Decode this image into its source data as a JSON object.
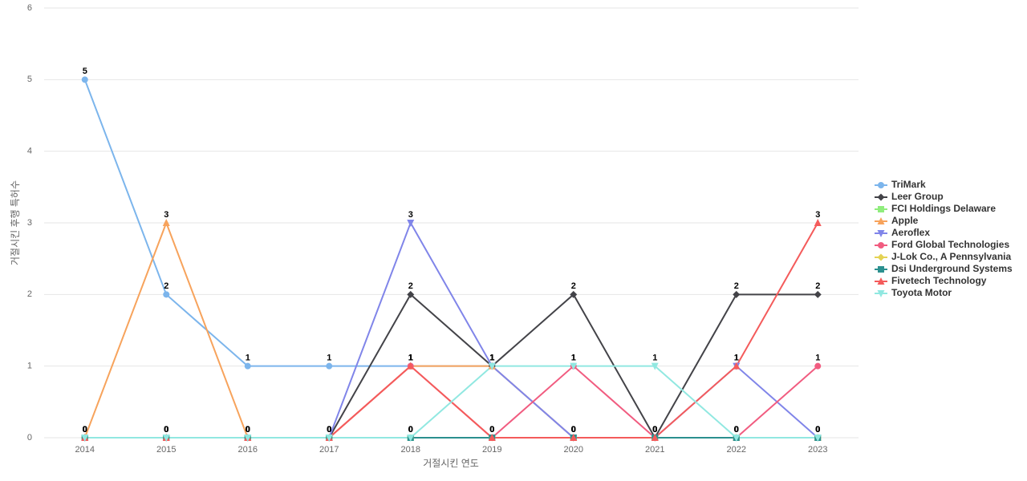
{
  "chart_data": {
    "type": "line",
    "x_label": "거절시킨 연도",
    "y_label": "거절시킨 후행 특허수",
    "categories": [
      "2014",
      "2015",
      "2016",
      "2017",
      "2018",
      "2019",
      "2020",
      "2021",
      "2022",
      "2023"
    ],
    "ylim": [
      0,
      6
    ],
    "yticks": [
      0,
      1,
      2,
      3,
      4,
      5,
      6
    ],
    "grid": true,
    "legend": "right",
    "data_labels": true,
    "series": [
      {
        "name": "TriMark",
        "color": "#7cb5ec",
        "marker": "circle",
        "values": [
          5,
          2,
          1,
          1,
          1,
          1,
          0,
          0,
          0,
          0
        ]
      },
      {
        "name": "Leer Group",
        "color": "#434348",
        "marker": "diamond",
        "values": [
          0,
          0,
          0,
          0,
          2,
          1,
          2,
          0,
          2,
          2
        ]
      },
      {
        "name": "FCI Holdings Delaware",
        "color": "#90ed7d",
        "marker": "square",
        "values": [
          0,
          0,
          0,
          0,
          0,
          0,
          0,
          0,
          0,
          0
        ]
      },
      {
        "name": "Apple",
        "color": "#f7a35c",
        "marker": "triangle",
        "values": [
          0,
          3,
          0,
          0,
          1,
          1,
          0,
          0,
          0,
          0
        ]
      },
      {
        "name": "Aeroflex",
        "color": "#8085e9",
        "marker": "triangle-down",
        "values": [
          0,
          0,
          0,
          0,
          3,
          1,
          0,
          0,
          1,
          0
        ]
      },
      {
        "name": "Ford Global Technologies",
        "color": "#f15c80",
        "marker": "circle",
        "values": [
          0,
          0,
          0,
          0,
          1,
          0,
          1,
          0,
          0,
          1
        ]
      },
      {
        "name": "J-Lok Co., A Pennsylvania",
        "color": "#e4d354",
        "marker": "diamond",
        "values": [
          0,
          0,
          0,
          0,
          0,
          0,
          0,
          0,
          0,
          0
        ]
      },
      {
        "name": "Dsi Underground Systems",
        "color": "#2b908f",
        "marker": "square",
        "values": [
          0,
          0,
          0,
          0,
          0,
          0,
          0,
          0,
          0,
          0
        ]
      },
      {
        "name": "Fivetech Technology",
        "color": "#f45b5b",
        "marker": "triangle",
        "values": [
          0,
          0,
          0,
          0,
          1,
          0,
          0,
          0,
          1,
          3
        ]
      },
      {
        "name": "Toyota Motor",
        "color": "#91e8e1",
        "marker": "triangle-down",
        "values": [
          0,
          0,
          0,
          0,
          0,
          1,
          1,
          1,
          0,
          0
        ]
      }
    ]
  }
}
